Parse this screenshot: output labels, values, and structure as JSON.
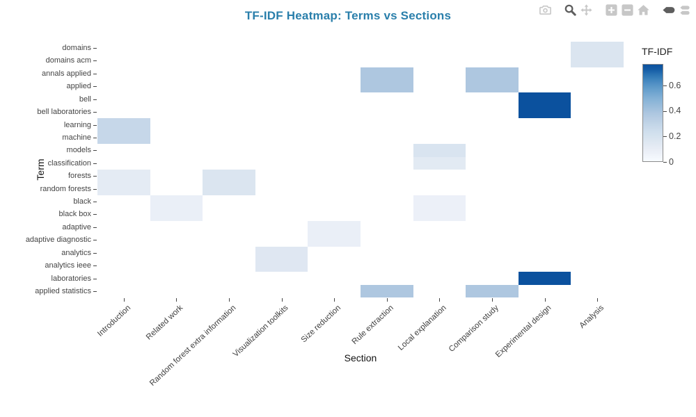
{
  "title": {
    "text": "TF-IDF Heatmap: Terms vs Sections",
    "color": "#2a7fab"
  },
  "modebar": {
    "groups": [
      [
        {
          "name": "camera",
          "active": false
        }
      ],
      [
        {
          "name": "zoom",
          "active": true
        },
        {
          "name": "pan",
          "active": false
        }
      ],
      [
        {
          "name": "zoom-in",
          "active": false
        },
        {
          "name": "zoom-out",
          "active": false
        },
        {
          "name": "autoscale-home",
          "active": false
        }
      ],
      [
        {
          "name": "hover-closest",
          "active": true
        },
        {
          "name": "hover-compare",
          "active": false
        }
      ]
    ]
  },
  "chart_data": {
    "type": "heatmap",
    "title": "TF-IDF Heatmap: Terms vs Sections",
    "xlabel": "Section",
    "ylabel": "Term",
    "x_categories": [
      "Introduction",
      "Related work",
      "Random forest extra information",
      "Visualization toolkits",
      "Size reduction",
      "Rule extraction",
      "Local explanation",
      "Comparison study",
      "Experimental design",
      "Analysis"
    ],
    "y_categories_top_to_bottom": [
      "domains",
      "domains acm",
      "annals applied",
      "applied",
      "bell",
      "bell laboratories",
      "learning",
      "machine",
      "models",
      "classification",
      "forests",
      "random forests",
      "black",
      "black box",
      "adaptive",
      "adaptive diagnostic",
      "analytics",
      "analytics ieee",
      "laboratories",
      "applied statistics"
    ],
    "z": [
      [
        null,
        null,
        null,
        null,
        null,
        null,
        null,
        null,
        null,
        0.17
      ],
      [
        null,
        null,
        null,
        null,
        null,
        null,
        null,
        null,
        null,
        0.17
      ],
      [
        null,
        null,
        null,
        null,
        null,
        0.38,
        null,
        0.38,
        null,
        null
      ],
      [
        null,
        null,
        null,
        null,
        null,
        0.38,
        null,
        0.38,
        null,
        null
      ],
      [
        null,
        null,
        null,
        null,
        null,
        null,
        null,
        null,
        0.75,
        null
      ],
      [
        null,
        null,
        null,
        null,
        null,
        null,
        null,
        null,
        0.75,
        null
      ],
      [
        0.28,
        null,
        null,
        null,
        null,
        null,
        null,
        null,
        null,
        null
      ],
      [
        0.28,
        null,
        null,
        null,
        null,
        null,
        null,
        null,
        null,
        null
      ],
      [
        null,
        null,
        null,
        null,
        null,
        null,
        0.18,
        null,
        null,
        null
      ],
      [
        null,
        null,
        null,
        null,
        null,
        null,
        0.13,
        null,
        null,
        null
      ],
      [
        0.12,
        null,
        0.17,
        null,
        null,
        null,
        null,
        null,
        null,
        null
      ],
      [
        0.12,
        null,
        0.17,
        null,
        null,
        null,
        null,
        null,
        null,
        null
      ],
      [
        null,
        0.08,
        null,
        null,
        null,
        null,
        0.07,
        null,
        null,
        null
      ],
      [
        null,
        0.08,
        null,
        null,
        null,
        null,
        0.07,
        null,
        null,
        null
      ],
      [
        null,
        null,
        null,
        null,
        0.08,
        null,
        null,
        null,
        null,
        null
      ],
      [
        null,
        null,
        null,
        null,
        0.08,
        null,
        null,
        null,
        null,
        null
      ],
      [
        null,
        null,
        null,
        0.15,
        null,
        null,
        null,
        null,
        null,
        null
      ],
      [
        null,
        null,
        null,
        0.15,
        null,
        null,
        null,
        null,
        null,
        null
      ],
      [
        null,
        null,
        null,
        null,
        null,
        null,
        null,
        null,
        0.75,
        null
      ],
      [
        null,
        null,
        null,
        null,
        null,
        0.38,
        null,
        0.38,
        null,
        null
      ]
    ],
    "colorscale": [
      [
        0.0,
        "#f7fbff"
      ],
      [
        0.07,
        "#ecf0f8"
      ],
      [
        0.12,
        "#e4ebf4"
      ],
      [
        0.17,
        "#dbe5f0"
      ],
      [
        0.22,
        "#d2e1ee"
      ],
      [
        0.28,
        "#c6d7e9"
      ],
      [
        0.38,
        "#aec7e0"
      ],
      [
        0.5,
        "#84b1d6"
      ],
      [
        0.6,
        "#5a97c8"
      ],
      [
        0.68,
        "#3079b7"
      ],
      [
        0.75,
        "#0b519e"
      ]
    ],
    "colorbar": {
      "title": "TF-IDF",
      "tick_labels": [
        "0",
        "0.2",
        "0.4",
        "0.6"
      ],
      "tick_values": [
        0,
        0.2,
        0.4,
        0.6
      ],
      "min": 0,
      "max": 0.77,
      "position": "right"
    },
    "grid": false,
    "background": "#ffffff"
  }
}
